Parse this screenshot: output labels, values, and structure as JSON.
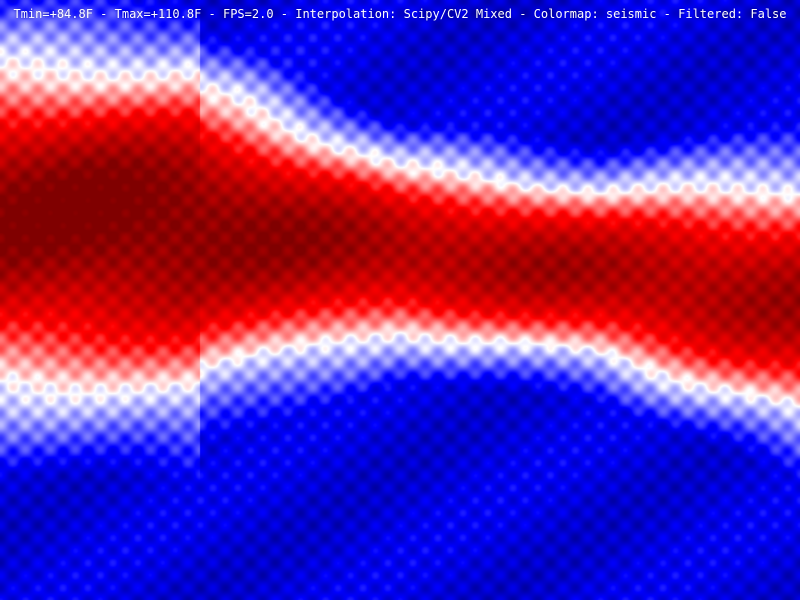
{
  "status": {
    "text": "Tmin=+84.8F - Tmax=+110.8F - FPS=2.0 - Interpolation: Scipy/CV2 Mixed - Colormap: seismic - Filtered: False"
  },
  "thermal": {
    "tmin": 84.8,
    "tmax": 110.8,
    "unit": "F",
    "fps": 2.0,
    "interpolation": "Scipy/CV2 Mixed",
    "colormap": "seismic",
    "filtered": false
  },
  "colors": {
    "cold": "#00004c",
    "cool": "#0000ff",
    "neutral": "#ffffff",
    "warm": "#ff0000",
    "hot": "#800000"
  }
}
